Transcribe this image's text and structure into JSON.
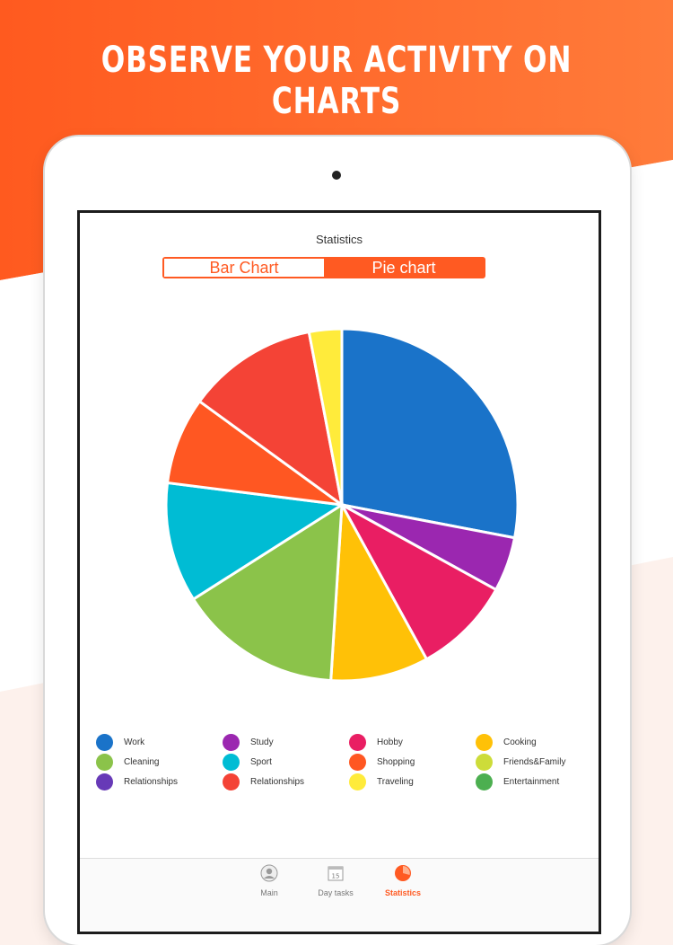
{
  "promo": {
    "title": "OBSERVE YOUR ACTIVITY ON CHARTS"
  },
  "screen": {
    "title": "Statistics",
    "segments": {
      "bar": "Bar Chart",
      "pie": "Pie chart",
      "active": "pie"
    }
  },
  "chart_data": {
    "type": "pie",
    "title": "",
    "slices": [
      {
        "label": "Work",
        "value": 28,
        "color": "#1a73c9"
      },
      {
        "label": "Study",
        "value": 5,
        "color": "#9b27b0"
      },
      {
        "label": "Hobby",
        "value": 9,
        "color": "#e91e63"
      },
      {
        "label": "Cooking",
        "value": 9,
        "color": "#ffc107"
      },
      {
        "label": "Cleaning",
        "value": 15,
        "color": "#8bc34a"
      },
      {
        "label": "Sport",
        "value": 11,
        "color": "#00bcd4"
      },
      {
        "label": "Shopping",
        "value": 8,
        "color": "#ff5722"
      },
      {
        "label": "Relationships",
        "value": 12,
        "color": "#f44336"
      },
      {
        "label": "Traveling",
        "value": 3,
        "color": "#ffeb3b"
      }
    ],
    "legend_placement": "bottom"
  },
  "legend": [
    {
      "label": "Work",
      "color": "#1a73c9"
    },
    {
      "label": "Study",
      "color": "#9b27b0"
    },
    {
      "label": "Hobby",
      "color": "#e91e63"
    },
    {
      "label": "Cooking",
      "color": "#ffc107"
    },
    {
      "label": "Cleaning",
      "color": "#8bc34a"
    },
    {
      "label": "Sport",
      "color": "#00bcd4"
    },
    {
      "label": "Shopping",
      "color": "#ff5722"
    },
    {
      "label": "Friends&Family",
      "color": "#cddc39"
    },
    {
      "label": "Relationships",
      "color": "#673ab7"
    },
    {
      "label": "Relationships",
      "color": "#f44336"
    },
    {
      "label": "Traveling",
      "color": "#ffeb3b"
    },
    {
      "label": "Entertainment",
      "color": "#4caf50"
    }
  ],
  "tabbar": {
    "main": {
      "label": "Main",
      "icon": "avatar-icon"
    },
    "day_tasks": {
      "label": "Day tasks",
      "icon": "calendar-icon",
      "day": "15"
    },
    "statistics": {
      "label": "Statistics",
      "icon": "pie-chart-icon"
    }
  },
  "colors": {
    "accent": "#ff5a22",
    "promo_bg_top": "#ff5a22"
  }
}
